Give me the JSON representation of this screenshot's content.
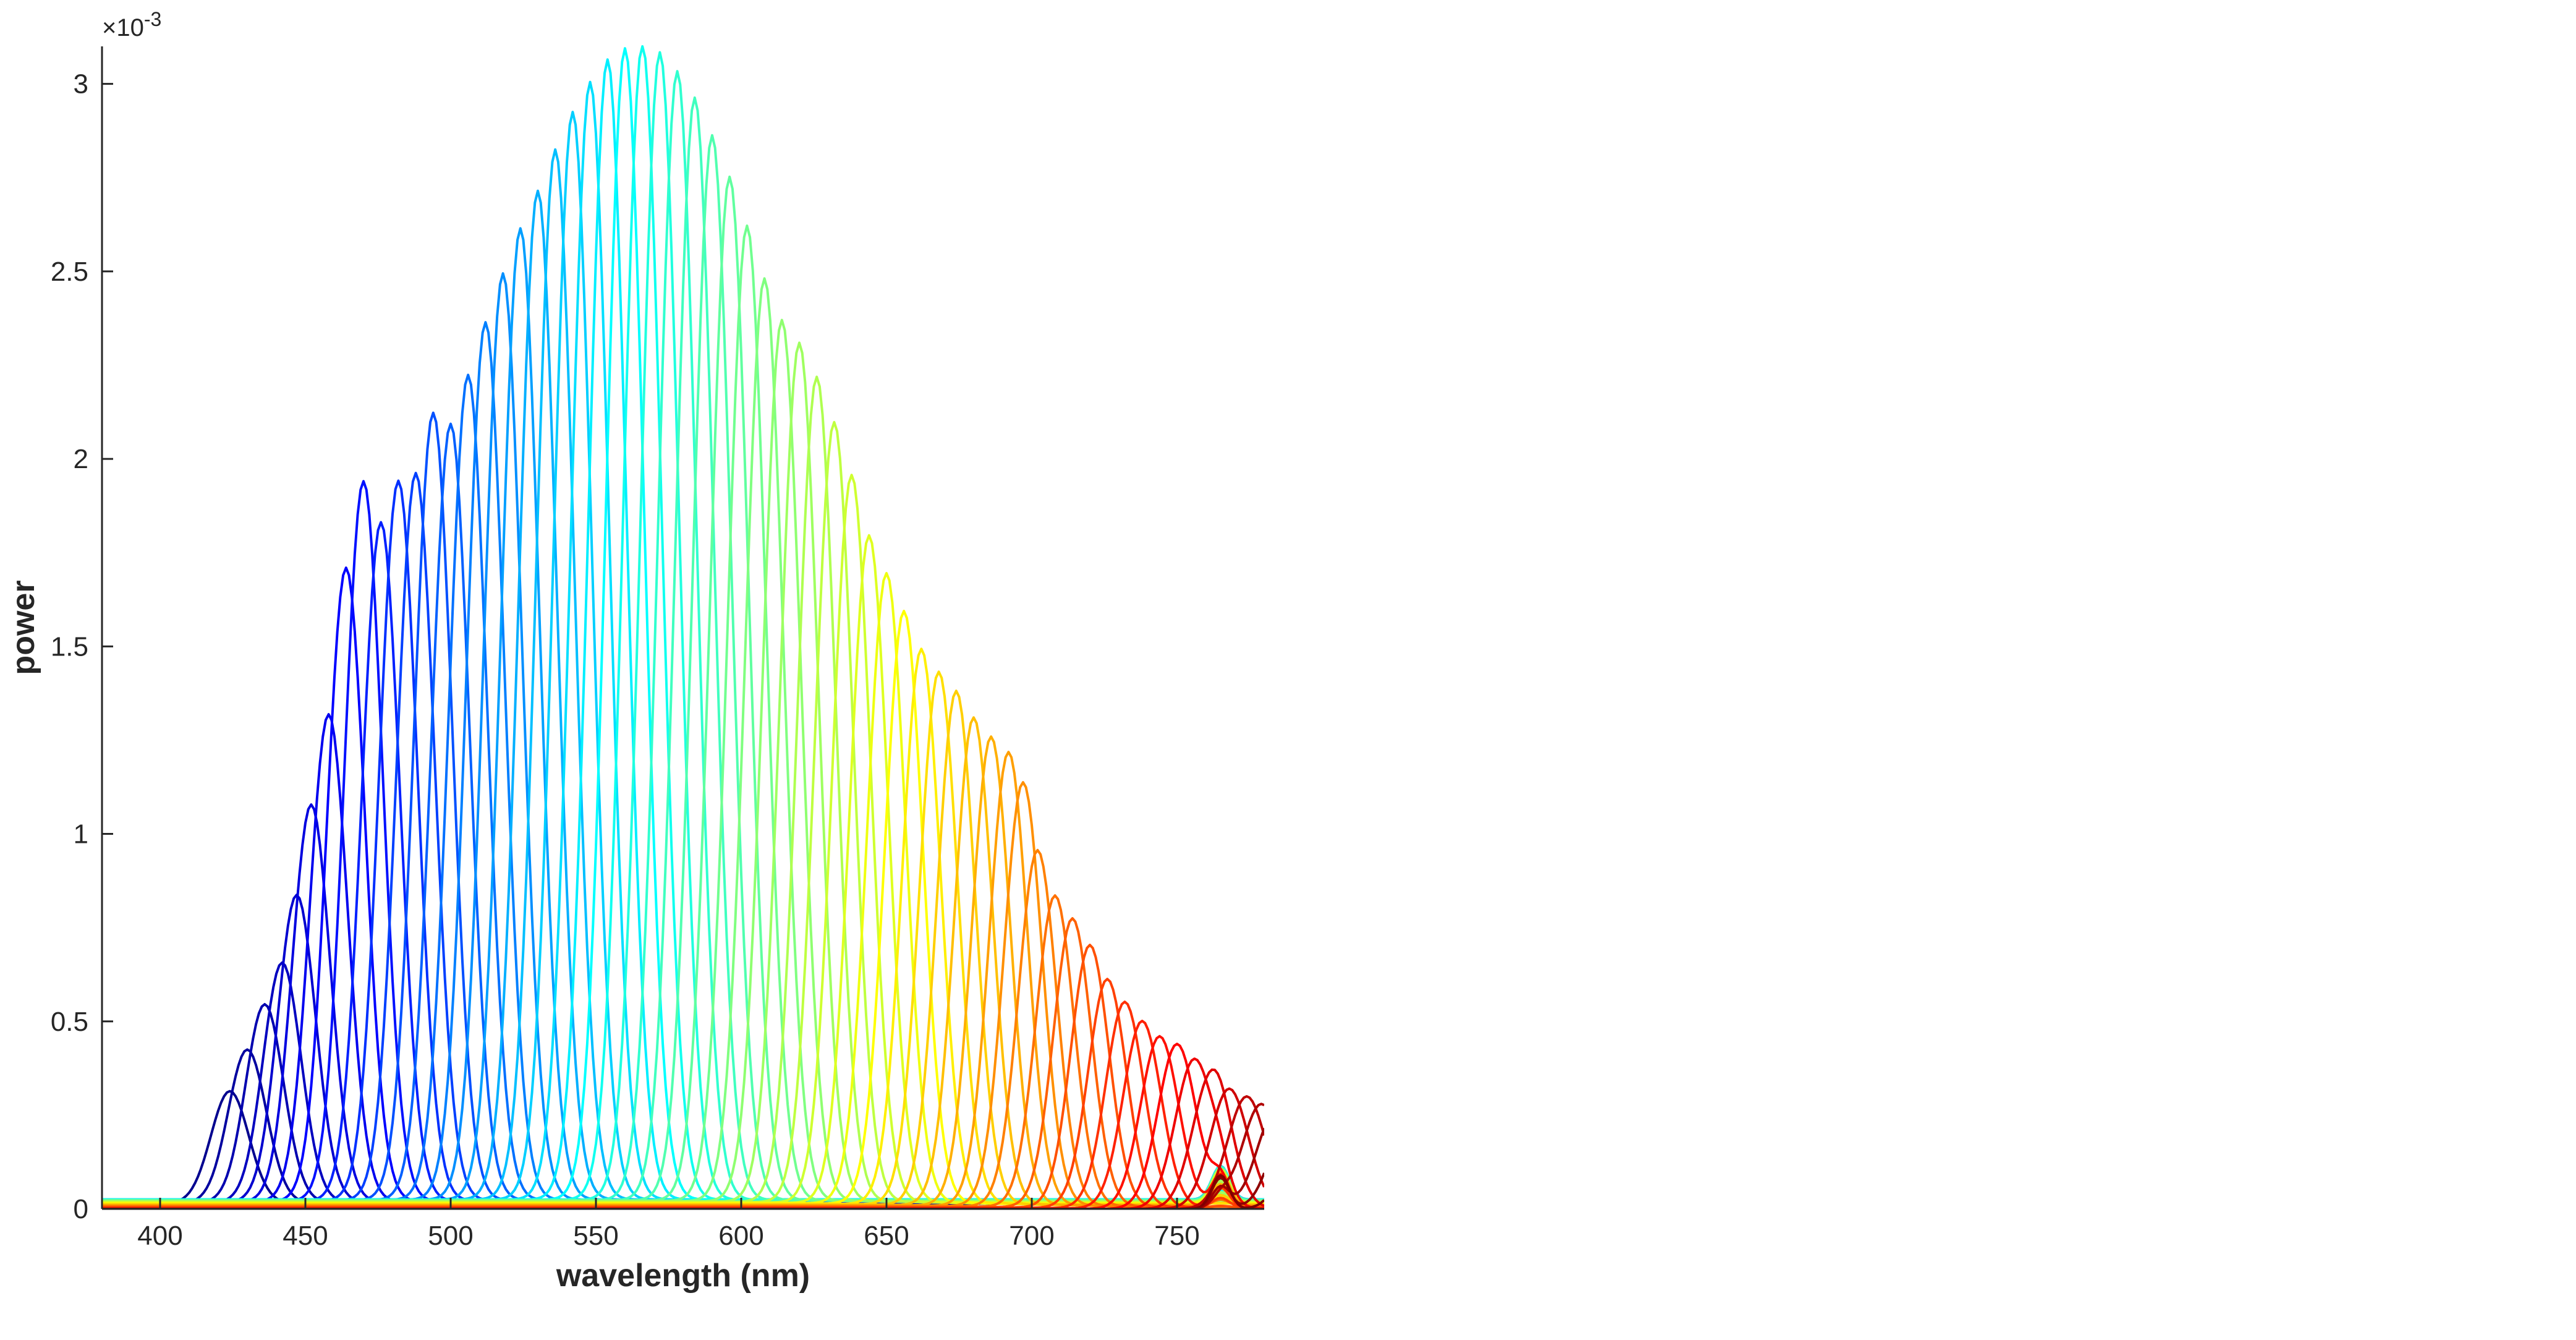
{
  "chart_data": {
    "type": "line",
    "title": "",
    "xlabel": "wavelength (nm)",
    "ylabel": "power",
    "xlim": [
      380,
      780
    ],
    "ylim": [
      0,
      0.0031
    ],
    "y_exponent_label": "×10",
    "y_exponent_power": "-3",
    "y_scale": 0.001,
    "grid": false,
    "legend": "none",
    "colormap": "jet",
    "x_ticks": [
      {
        "value": 400,
        "label": "400"
      },
      {
        "value": 450,
        "label": "450"
      },
      {
        "value": 500,
        "label": "500"
      },
      {
        "value": 550,
        "label": "550"
      },
      {
        "value": 600,
        "label": "600"
      },
      {
        "value": 650,
        "label": "650"
      },
      {
        "value": 700,
        "label": "700"
      },
      {
        "value": 750,
        "label": "750"
      }
    ],
    "y_ticks": [
      {
        "value": 0,
        "label": "0"
      },
      {
        "value": 0.0005,
        "label": "0.5"
      },
      {
        "value": 0.001,
        "label": "1"
      },
      {
        "value": 0.0015,
        "label": "1.5"
      },
      {
        "value": 0.002,
        "label": "2"
      },
      {
        "value": 0.0025,
        "label": "2.5"
      },
      {
        "value": 0.003,
        "label": "3"
      }
    ],
    "series": [
      {
        "peak_nm": 424,
        "peak_power": 0.0003,
        "color": "#00008f"
      },
      {
        "peak_nm": 430,
        "peak_power": 0.00041,
        "color": "#00009f"
      },
      {
        "peak_nm": 436,
        "peak_power": 0.00053,
        "color": "#0000af"
      },
      {
        "peak_nm": 442,
        "peak_power": 0.00064,
        "color": "#0000bf"
      },
      {
        "peak_nm": 447,
        "peak_power": 0.00082,
        "color": "#0000cf"
      },
      {
        "peak_nm": 452,
        "peak_power": 0.00106,
        "color": "#0000df"
      },
      {
        "peak_nm": 458,
        "peak_power": 0.0013,
        "color": "#0000ef"
      },
      {
        "peak_nm": 464,
        "peak_power": 0.00169,
        "color": "#0000ff"
      },
      {
        "peak_nm": 470,
        "peak_power": 0.00192,
        "color": "#0010ff"
      },
      {
        "peak_nm": 476,
        "peak_power": 0.00181,
        "color": "#0020ff"
      },
      {
        "peak_nm": 482,
        "peak_power": 0.00192,
        "color": "#0030ff"
      },
      {
        "peak_nm": 488,
        "peak_power": 0.00194,
        "color": "#0040ff"
      },
      {
        "peak_nm": 494,
        "peak_power": 0.0021,
        "color": "#0050ff"
      },
      {
        "peak_nm": 500,
        "peak_power": 0.00207,
        "color": "#0060ff"
      },
      {
        "peak_nm": 506,
        "peak_power": 0.0022,
        "color": "#0070ff"
      },
      {
        "peak_nm": 512,
        "peak_power": 0.00234,
        "color": "#0080ff"
      },
      {
        "peak_nm": 518,
        "peak_power": 0.00247,
        "color": "#008fff"
      },
      {
        "peak_nm": 524,
        "peak_power": 0.00259,
        "color": "#009fff"
      },
      {
        "peak_nm": 530,
        "peak_power": 0.00269,
        "color": "#00afff"
      },
      {
        "peak_nm": 536,
        "peak_power": 0.0028,
        "color": "#00bfff"
      },
      {
        "peak_nm": 542,
        "peak_power": 0.0029,
        "color": "#00cfff"
      },
      {
        "peak_nm": 548,
        "peak_power": 0.00298,
        "color": "#00dfff"
      },
      {
        "peak_nm": 554,
        "peak_power": 0.00304,
        "color": "#00efff"
      },
      {
        "peak_nm": 560,
        "peak_power": 0.00307,
        "color": "#00ffff"
      },
      {
        "peak_nm": 566,
        "peak_power": 0.00308,
        "color": "#10ffef"
      },
      {
        "peak_nm": 572,
        "peak_power": 0.00306,
        "color": "#20ffdf"
      },
      {
        "peak_nm": 578,
        "peak_power": 0.00301,
        "color": "#30ffcf"
      },
      {
        "peak_nm": 584,
        "peak_power": 0.00294,
        "color": "#40ffbf"
      },
      {
        "peak_nm": 590,
        "peak_power": 0.00284,
        "color": "#50ffaf"
      },
      {
        "peak_nm": 596,
        "peak_power": 0.00273,
        "color": "#60ff9f"
      },
      {
        "peak_nm": 602,
        "peak_power": 0.0026,
        "color": "#70ff8f"
      },
      {
        "peak_nm": 608,
        "peak_power": 0.00246,
        "color": "#80ff80"
      },
      {
        "peak_nm": 614,
        "peak_power": 0.00235,
        "color": "#8fff70"
      },
      {
        "peak_nm": 620,
        "peak_power": 0.00229,
        "color": "#9fff60"
      },
      {
        "peak_nm": 626,
        "peak_power": 0.0022,
        "color": "#afff50"
      },
      {
        "peak_nm": 632,
        "peak_power": 0.00208,
        "color": "#bfff40"
      },
      {
        "peak_nm": 638,
        "peak_power": 0.00194,
        "color": "#cfff30"
      },
      {
        "peak_nm": 644,
        "peak_power": 0.00178,
        "color": "#dfff20"
      },
      {
        "peak_nm": 650,
        "peak_power": 0.00168,
        "color": "#efff10"
      },
      {
        "peak_nm": 656,
        "peak_power": 0.00158,
        "color": "#ffff00"
      },
      {
        "peak_nm": 662,
        "peak_power": 0.00148,
        "color": "#ffef00"
      },
      {
        "peak_nm": 668,
        "peak_power": 0.00142,
        "color": "#ffdf00"
      },
      {
        "peak_nm": 674,
        "peak_power": 0.00137,
        "color": "#ffcf00"
      },
      {
        "peak_nm": 680,
        "peak_power": 0.0013,
        "color": "#ffbf00"
      },
      {
        "peak_nm": 686,
        "peak_power": 0.00125,
        "color": "#ffaf00"
      },
      {
        "peak_nm": 692,
        "peak_power": 0.00121,
        "color": "#ff9f00"
      },
      {
        "peak_nm": 697,
        "peak_power": 0.00113,
        "color": "#ff8f00"
      },
      {
        "peak_nm": 702,
        "peak_power": 0.00095,
        "color": "#ff8000"
      },
      {
        "peak_nm": 708,
        "peak_power": 0.00083,
        "color": "#ff7000"
      },
      {
        "peak_nm": 714,
        "peak_power": 0.00077,
        "color": "#ff6000"
      },
      {
        "peak_nm": 720,
        "peak_power": 0.0007,
        "color": "#ff5000"
      },
      {
        "peak_nm": 726,
        "peak_power": 0.00061,
        "color": "#ff4000"
      },
      {
        "peak_nm": 732,
        "peak_power": 0.00055,
        "color": "#ff3000"
      },
      {
        "peak_nm": 738,
        "peak_power": 0.0005,
        "color": "#ff2000"
      },
      {
        "peak_nm": 744,
        "peak_power": 0.00046,
        "color": "#ff1000"
      },
      {
        "peak_nm": 750,
        "peak_power": 0.00044,
        "color": "#ff0000"
      },
      {
        "peak_nm": 756,
        "peak_power": 0.0004,
        "color": "#ef0000"
      },
      {
        "peak_nm": 762,
        "peak_power": 0.00036,
        "color": "#df0000"
      },
      {
        "peak_nm": 768,
        "peak_power": 0.00032,
        "color": "#cf0000"
      },
      {
        "peak_nm": 774,
        "peak_power": 0.0003,
        "color": "#bf0000"
      },
      {
        "peak_nm": 779,
        "peak_power": 0.00028,
        "color": "#af0000"
      },
      {
        "peak_nm": 784,
        "peak_power": 0.00026,
        "color": "#9f0000"
      },
      {
        "peak_nm": 789,
        "peak_power": 0.00025,
        "color": "#8f0000"
      },
      {
        "peak_nm": 794,
        "peak_power": 0.00024,
        "color": "#800000"
      }
    ]
  }
}
